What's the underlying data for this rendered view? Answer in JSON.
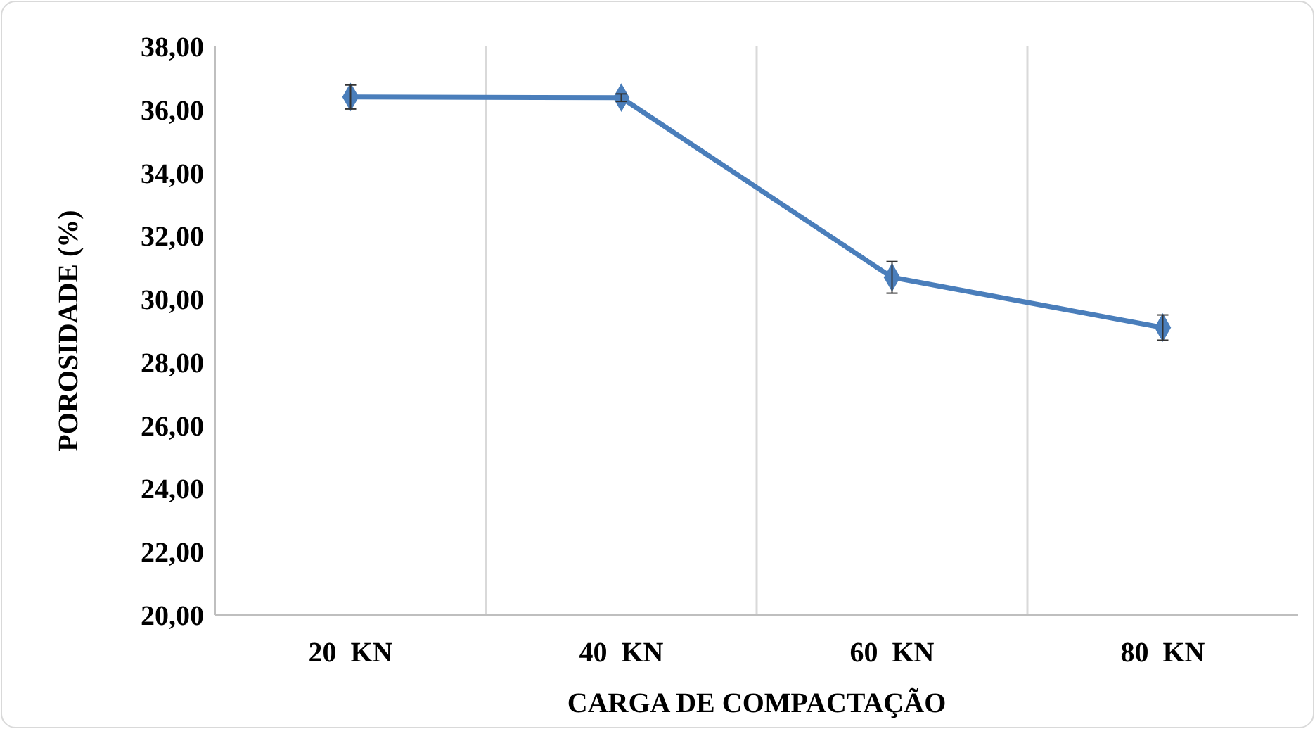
{
  "chart_data": {
    "type": "line",
    "xlabel": "CARGA DE COMPACTAÇÃO",
    "ylabel": "POROSIDADE (%)",
    "categories": [
      "20  KN",
      "40  KN",
      "60  KN",
      "80  KN"
    ],
    "series": [
      {
        "color": "#4a7ebb",
        "values": [
          36.4,
          36.38,
          30.69,
          29.1
        ],
        "errors": [
          0.38,
          0.12,
          0.5,
          0.4
        ]
      }
    ],
    "ylim": [
      20,
      38
    ],
    "yticks": [
      {
        "value": 20,
        "label": "20,00"
      },
      {
        "value": 22,
        "label": "22,00"
      },
      {
        "value": 24,
        "label": "24,00"
      },
      {
        "value": 26,
        "label": "26,00"
      },
      {
        "value": 28,
        "label": "28,00"
      },
      {
        "value": 30,
        "label": "30,00"
      },
      {
        "value": 32,
        "label": "32,00"
      },
      {
        "value": 34,
        "label": "34,00"
      },
      {
        "value": 36,
        "label": "36,00"
      },
      {
        "value": 38,
        "label": "38,00"
      }
    ],
    "grid": "x",
    "marker": "diamond",
    "line_style": "solid"
  }
}
